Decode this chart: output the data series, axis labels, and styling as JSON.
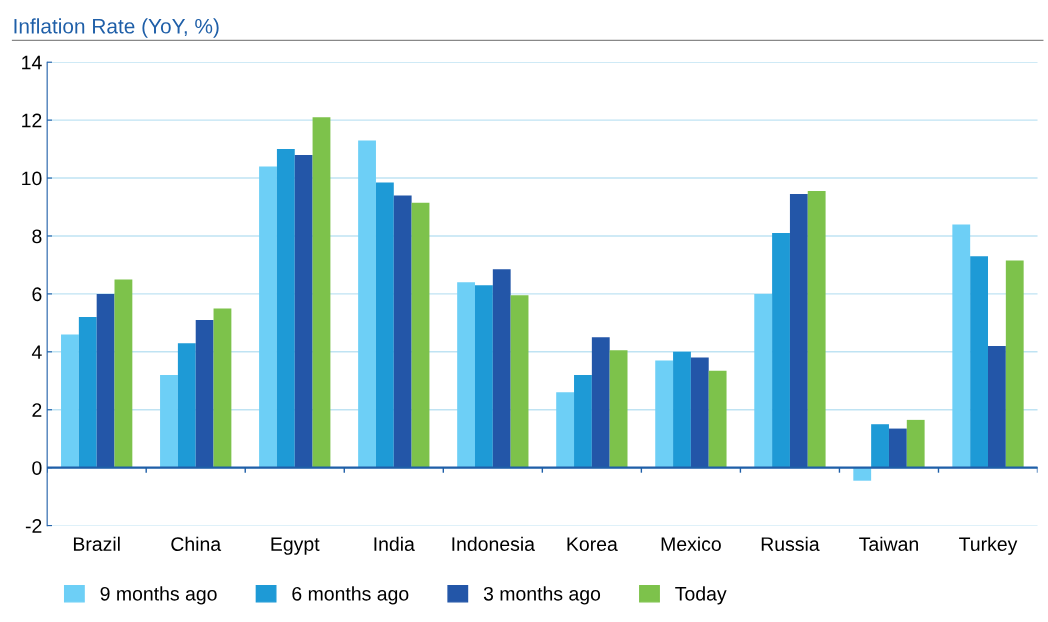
{
  "chart_data": {
    "type": "bar",
    "title": "Inflation Rate (YoY, %)",
    "categories": [
      "Brazil",
      "China",
      "Egypt",
      "India",
      "Indonesia",
      "Korea",
      "Mexico",
      "Russia",
      "Taiwan",
      "Turkey"
    ],
    "series": [
      {
        "name": "9 months ago",
        "color": "#6dcff6",
        "values": [
          4.6,
          3.2,
          10.4,
          11.3,
          6.4,
          2.6,
          3.7,
          6.0,
          -0.45,
          8.4
        ]
      },
      {
        "name": "6 months ago",
        "color": "#1e9ad6",
        "values": [
          5.2,
          4.3,
          11.0,
          9.85,
          6.3,
          3.2,
          4.0,
          8.1,
          1.5,
          7.3
        ]
      },
      {
        "name": "3 months ago",
        "color": "#2356a8",
        "values": [
          6.0,
          5.1,
          10.8,
          9.4,
          6.85,
          4.5,
          3.8,
          9.45,
          1.35,
          4.2
        ]
      },
      {
        "name": "Today",
        "color": "#7dc24b",
        "values": [
          6.5,
          5.5,
          12.1,
          9.15,
          5.95,
          4.05,
          3.35,
          9.55,
          1.65,
          7.15
        ]
      }
    ],
    "ylim": [
      -2,
      14
    ],
    "yticks": [
      -2,
      0,
      2,
      4,
      6,
      8,
      10,
      12,
      14
    ],
    "grid": "y",
    "legend": "bottom",
    "ref_lines": [
      {
        "axis": "y",
        "value": 0,
        "color": "#1f5fa8",
        "line_style": "solid"
      }
    ]
  }
}
